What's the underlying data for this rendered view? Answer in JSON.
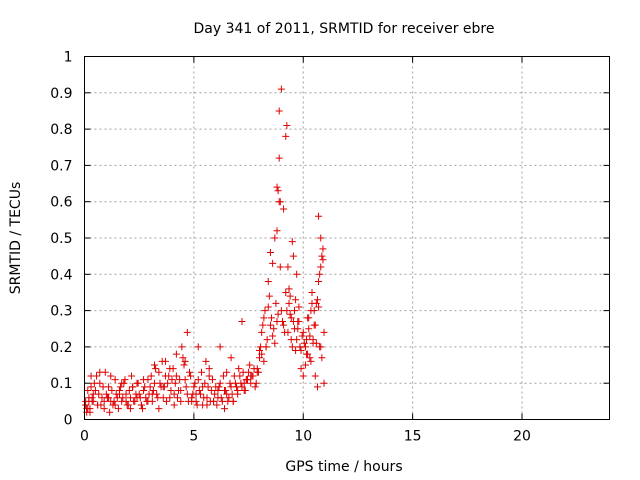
{
  "chart_data": {
    "type": "scatter",
    "title": "Day 341 of 2011, SRMTID for receiver ebre",
    "xlabel": "GPS time / hours",
    "ylabel": "SRMTID / TECUs",
    "xlim": [
      0,
      24
    ],
    "ylim": [
      0,
      1
    ],
    "xticks": [
      0,
      5,
      10,
      15,
      20
    ],
    "yticks": [
      0,
      0.1,
      0.2,
      0.3,
      0.4,
      0.5,
      0.6,
      0.7,
      0.8,
      0.9,
      1
    ],
    "xtick_labels": [
      "0",
      "5",
      "10",
      "15",
      "20"
    ],
    "ytick_labels": [
      "0",
      "0.1",
      "0.2",
      "0.3",
      "0.4",
      "0.5",
      "0.6",
      "0.7",
      "0.8",
      "0.9",
      "1"
    ],
    "grid": true,
    "marker": "+",
    "color": "#e00000",
    "series": [
      {
        "name": "ebre",
        "x": [
          0.05,
          0.15,
          0.25,
          0.35,
          0.45,
          0.55,
          0.65,
          0.75,
          0.85,
          0.95,
          1.05,
          1.15,
          1.25,
          1.35,
          1.45,
          1.55,
          1.65,
          1.75,
          1.85,
          1.95,
          2.05,
          2.15,
          2.25,
          2.35,
          2.45,
          2.55,
          2.65,
          2.75,
          2.85,
          2.95,
          3.05,
          3.15,
          3.25,
          3.35,
          3.45,
          3.55,
          3.65,
          3.75,
          3.85,
          3.95,
          4.05,
          4.15,
          4.25,
          4.35,
          4.45,
          4.55,
          4.65,
          4.75,
          4.85,
          4.95,
          5.05,
          5.15,
          5.25,
          5.35,
          5.45,
          5.55,
          5.65,
          5.75,
          5.85,
          5.95,
          6.05,
          6.15,
          6.25,
          6.35,
          6.45,
          6.55,
          6.65,
          6.75,
          6.85,
          6.95,
          7.05,
          7.15,
          7.25,
          7.35,
          7.45,
          7.55,
          7.65,
          7.75,
          7.85,
          7.95,
          8.05,
          8.15,
          8.25,
          8.35,
          8.45,
          8.55,
          8.65,
          8.75,
          8.85,
          8.95,
          9.05,
          9.15,
          9.25,
          9.35,
          9.45,
          9.55,
          9.65,
          9.75,
          9.85,
          9.95,
          10.05,
          10.15,
          10.25,
          10.35,
          10.45,
          10.55,
          10.65,
          10.75,
          10.85,
          10.95,
          0.1,
          0.2,
          0.3,
          0.4,
          0.5,
          0.6,
          0.7,
          0.8,
          0.9,
          1.0,
          1.1,
          1.2,
          1.3,
          1.4,
          1.5,
          1.6,
          1.7,
          1.8,
          1.9,
          2.0,
          2.1,
          2.2,
          2.3,
          2.4,
          2.5,
          2.6,
          2.7,
          2.8,
          2.9,
          3.0,
          3.1,
          3.2,
          3.3,
          3.4,
          3.5,
          3.6,
          3.7,
          3.8,
          3.9,
          4.0,
          4.1,
          4.2,
          4.3,
          4.4,
          4.5,
          4.6,
          4.7,
          4.8,
          4.9,
          5.0,
          5.1,
          5.2,
          5.3,
          5.4,
          5.5,
          5.6,
          5.7,
          5.8,
          5.9,
          6.0,
          6.1,
          6.2,
          6.3,
          6.4,
          6.5,
          6.6,
          6.7,
          6.8,
          6.9,
          7.0,
          7.1,
          7.2,
          7.3,
          7.4,
          7.5,
          7.6,
          7.7,
          7.8,
          7.9,
          8.0,
          8.1,
          8.2,
          8.3,
          8.4,
          8.5,
          8.6,
          8.7,
          8.8,
          8.9,
          9.0,
          9.1,
          9.2,
          9.3,
          9.4,
          9.5,
          9.6,
          9.7,
          9.8,
          9.9,
          10.0,
          10.1,
          10.2,
          10.3,
          10.4,
          10.5,
          10.6,
          10.7,
          10.8,
          0.3,
          0.7,
          1.2,
          1.7,
          2.2,
          2.7,
          3.2,
          3.7,
          4.2,
          4.6,
          4.7,
          5.2,
          5.7,
          6.2,
          6.7,
          7.2,
          8.8,
          8.85,
          8.9,
          8.95,
          9.0,
          8.9,
          8.8,
          8.7,
          9.1,
          9.3,
          9.5,
          9.7,
          10.7,
          10.8,
          10.85,
          10.9,
          10.8,
          10.75,
          9.35,
          9.6,
          10.4,
          10.5,
          10.6,
          8.5,
          8.6,
          8.4,
          10.95,
          10.3,
          9.9,
          10.0,
          10.2,
          8.3,
          8.2,
          8.1,
          8.0,
          7.9,
          7.6,
          7.4,
          7.3,
          7.0,
          6.8,
          6.5,
          6.4,
          6.1,
          5.9,
          5.6,
          5.4,
          5.1,
          4.9,
          4.4,
          4.1,
          3.9,
          3.6,
          3.4,
          3.1,
          2.9,
          2.6,
          2.4,
          2.1,
          1.9,
          1.6,
          1.4,
          1.1,
          0.9,
          0.6,
          0.4,
          0.2,
          0.1,
          0.05,
          0.15,
          0.25,
          0.35,
          9.2,
          9.25,
          9.4,
          9.45,
          9.55,
          9.65,
          9.75,
          9.8,
          9.85,
          10.1,
          10.15,
          10.25,
          10.35,
          10.45,
          10.55,
          10.65,
          10.7,
          10.9
        ],
        "y": [
          0.05,
          0.08,
          0.03,
          0.06,
          0.1,
          0.12,
          0.07,
          0.04,
          0.09,
          0.13,
          0.06,
          0.02,
          0.08,
          0.05,
          0.07,
          0.03,
          0.09,
          0.06,
          0.11,
          0.04,
          0.08,
          0.12,
          0.05,
          0.07,
          0.1,
          0.06,
          0.03,
          0.09,
          0.05,
          0.07,
          0.12,
          0.08,
          0.14,
          0.06,
          0.1,
          0.16,
          0.09,
          0.05,
          0.12,
          0.08,
          0.14,
          0.1,
          0.06,
          0.11,
          0.2,
          0.15,
          0.09,
          0.05,
          0.12,
          0.07,
          0.1,
          0.04,
          0.08,
          0.13,
          0.06,
          0.16,
          0.09,
          0.05,
          0.11,
          0.07,
          0.04,
          0.09,
          0.06,
          0.12,
          0.08,
          0.05,
          0.1,
          0.07,
          0.12,
          0.09,
          0.14,
          0.1,
          0.13,
          0.08,
          0.11,
          0.15,
          0.12,
          0.14,
          0.1,
          0.13,
          0.2,
          0.26,
          0.3,
          0.22,
          0.34,
          0.28,
          0.25,
          0.32,
          0.29,
          0.42,
          0.27,
          0.24,
          0.3,
          0.36,
          0.22,
          0.27,
          0.19,
          0.25,
          0.2,
          0.23,
          0.21,
          0.18,
          0.25,
          0.3,
          0.22,
          0.26,
          0.33,
          0.2,
          0.17,
          0.24,
          0.03,
          0.06,
          0.09,
          0.05,
          0.08,
          0.04,
          0.1,
          0.06,
          0.03,
          0.07,
          0.09,
          0.05,
          0.04,
          0.11,
          0.06,
          0.08,
          0.05,
          0.1,
          0.07,
          0.04,
          0.06,
          0.09,
          0.05,
          0.1,
          0.07,
          0.04,
          0.08,
          0.06,
          0.11,
          0.09,
          0.05,
          0.1,
          0.07,
          0.13,
          0.09,
          0.06,
          0.12,
          0.1,
          0.14,
          0.11,
          0.07,
          0.12,
          0.08,
          0.05,
          0.17,
          0.11,
          0.07,
          0.13,
          0.06,
          0.09,
          0.05,
          0.11,
          0.07,
          0.04,
          0.1,
          0.06,
          0.12,
          0.08,
          0.05,
          0.09,
          0.06,
          0.1,
          0.05,
          0.08,
          0.13,
          0.06,
          0.09,
          0.05,
          0.1,
          0.07,
          0.12,
          0.09,
          0.08,
          0.11,
          0.13,
          0.1,
          0.12,
          0.09,
          0.14,
          0.17,
          0.24,
          0.28,
          0.2,
          0.31,
          0.26,
          0.23,
          0.21,
          0.27,
          0.6,
          0.3,
          0.26,
          0.35,
          0.24,
          0.29,
          0.2,
          0.25,
          0.22,
          0.27,
          0.19,
          0.24,
          0.2,
          0.28,
          0.23,
          0.32,
          0.26,
          0.21,
          0.38,
          0.2,
          0.12,
          0.13,
          0.12,
          0.1,
          0.09,
          0.11,
          0.15,
          0.16,
          0.18,
          0.16,
          0.24,
          0.2,
          0.14,
          0.2,
          0.17,
          0.27,
          0.52,
          0.63,
          0.72,
          0.6,
          0.91,
          0.85,
          0.64,
          0.5,
          0.58,
          0.42,
          0.49,
          0.4,
          0.56,
          0.5,
          0.45,
          0.44,
          0.42,
          0.4,
          0.32,
          0.3,
          0.35,
          0.3,
          0.32,
          0.46,
          0.43,
          0.38,
          0.1,
          0.17,
          0.14,
          0.12,
          0.18,
          0.2,
          0.16,
          0.18,
          0.19,
          0.13,
          0.12,
          0.11,
          0.1,
          0.08,
          0.05,
          0.07,
          0.03,
          0.08,
          0.05,
          0.04,
          0.09,
          0.07,
          0.05,
          0.08,
          0.04,
          0.06,
          0.09,
          0.03,
          0.07,
          0.05,
          0.04,
          0.06,
          0.03,
          0.05,
          0.07,
          0.04,
          0.06,
          0.05,
          0.04,
          0.07,
          0.05,
          0.02,
          0.04,
          0.03,
          0.02,
          0.05,
          0.78,
          0.81,
          0.34,
          0.28,
          0.45,
          0.33,
          0.27,
          0.31,
          0.2,
          0.15,
          0.22,
          0.28,
          0.16,
          0.21,
          0.12,
          0.09,
          0.31,
          0.47
        ]
      }
    ]
  }
}
